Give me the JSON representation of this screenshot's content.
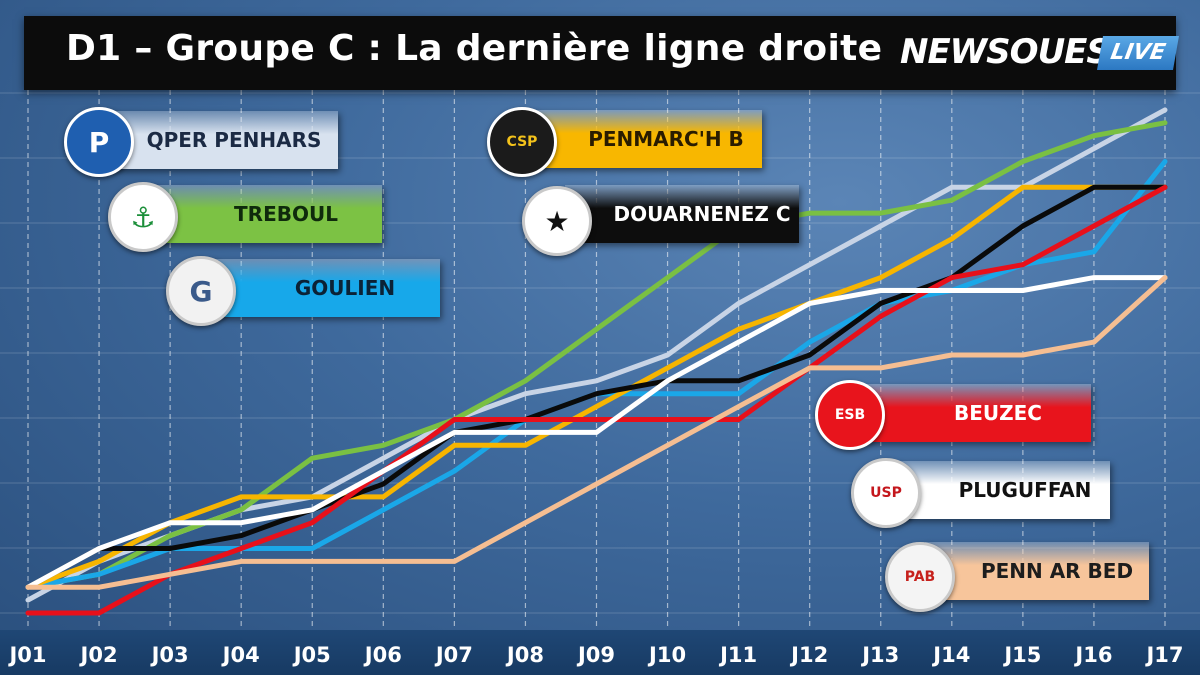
{
  "header": {
    "title": "D1 – Groupe C : La dernière ligne droite",
    "brand": "NEWSOUEST",
    "brand_suffix": "LIVE"
  },
  "chart_data": {
    "type": "line",
    "title": "D1 – Groupe C : La dernière ligne droite",
    "categories": [
      "J01",
      "J02",
      "J03",
      "J04",
      "J05",
      "J06",
      "J07",
      "J08",
      "J09",
      "J10",
      "J11",
      "J12",
      "J13",
      "J14",
      "J15",
      "J16",
      "J17"
    ],
    "grid": true,
    "legend": "inline labels with club logos",
    "series": [
      {
        "name": "QPER PENHARS",
        "color": "#c8d4e6",
        "values": [
          1,
          4,
          6,
          8,
          9,
          12,
          15,
          17,
          18,
          20,
          24,
          27,
          30,
          33,
          33,
          36,
          39
        ]
      },
      {
        "name": "TREBOUL",
        "color": "#7ac043",
        "values": [
          2,
          3,
          6,
          8,
          12,
          13,
          15,
          18,
          22,
          26,
          30,
          31,
          31,
          32,
          35,
          37,
          38
        ]
      },
      {
        "name": "GOULIEN",
        "color": "#1aa7e8",
        "values": [
          2,
          3,
          5,
          5,
          5,
          8,
          11,
          15,
          17,
          17,
          17,
          21,
          24,
          25,
          27,
          28,
          35
        ]
      },
      {
        "name": "PENMARC'H B",
        "color": "#f7b500",
        "values": [
          2,
          4,
          7,
          9,
          9,
          9,
          13,
          13,
          16,
          19,
          22,
          24,
          26,
          29,
          33,
          33,
          33
        ]
      },
      {
        "name": "DOUARNENEZ C",
        "color": "#0a0a0a",
        "values": [
          2,
          5,
          5,
          6,
          8,
          10,
          14,
          15,
          17,
          18,
          18,
          20,
          24,
          26,
          30,
          33,
          33
        ]
      },
      {
        "name": "BEUZEC",
        "color": "#e8101a",
        "values": [
          0,
          0,
          3,
          5,
          7,
          11,
          15,
          15,
          15,
          15,
          15,
          19,
          23,
          26,
          27,
          30,
          33
        ]
      },
      {
        "name": "PLUGUFFAN",
        "color": "#ffffff",
        "values": [
          2,
          5,
          7,
          7,
          8,
          11,
          14,
          14,
          14,
          18,
          21,
          24,
          25,
          25,
          25,
          26,
          26
        ]
      },
      {
        "name": "PENN AR BED",
        "color": "#f5be92",
        "values": [
          2,
          2,
          3,
          4,
          4,
          4,
          4,
          7,
          10,
          13,
          16,
          19,
          19,
          20,
          20,
          21,
          26
        ]
      }
    ]
  },
  "teams": [
    {
      "name": "QPER PENHARS",
      "logo_text": "P",
      "box_color": "#d8e2ef",
      "text_color": "#1b2a44",
      "logo_bg": "#1f5fb0",
      "logo_fg": "#ffffff"
    },
    {
      "name": "TREBOUL",
      "logo_text": "⚓",
      "box_color": "#7cc244",
      "text_color": "#0f2a0c",
      "logo_bg": "#ffffff",
      "logo_fg": "#1c8f3a"
    },
    {
      "name": "GOULIEN",
      "logo_text": "G",
      "box_color": "#17a8ea",
      "text_color": "#0b2236",
      "logo_bg": "#f2f2f2",
      "logo_fg": "#3a5a8a"
    },
    {
      "name": "PENMARC'H B",
      "logo_text": "CSP",
      "box_color": "#f8b700",
      "text_color": "#2a1c00",
      "logo_bg": "#1b1b1b",
      "logo_fg": "#f3c21b"
    },
    {
      "name": "DOUARNENEZ C",
      "logo_text": "★",
      "box_color": "#0d0d0d",
      "text_color": "#ffffff",
      "logo_bg": "#ffffff",
      "logo_fg": "#111111"
    },
    {
      "name": "BEUZEC",
      "logo_text": "ESB",
      "box_color": "#e8141c",
      "text_color": "#ffffff",
      "logo_bg": "#e8141c",
      "logo_fg": "#ffffff"
    },
    {
      "name": "PLUGUFFAN",
      "logo_text": "USP",
      "box_color": "#ffffff",
      "text_color": "#111111",
      "logo_bg": "#ffffff",
      "logo_fg": "#c4171d"
    },
    {
      "name": "PENN AR BED",
      "logo_text": "PAB",
      "box_color": "#f7c59b",
      "text_color": "#1d1d1d",
      "logo_bg": "#f4f4f4",
      "logo_fg": "#c6211c"
    }
  ]
}
